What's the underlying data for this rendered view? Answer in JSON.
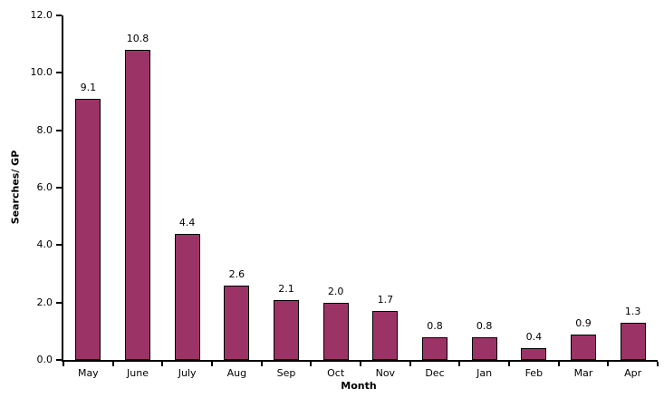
{
  "chart_data": {
    "type": "bar",
    "title": "",
    "xlabel": "Month",
    "ylabel": "Searches/ GP",
    "categories": [
      "May",
      "June",
      "July",
      "Aug",
      "Sep",
      "Oct",
      "Nov",
      "Dec",
      "Jan",
      "Feb",
      "Mar",
      "Apr"
    ],
    "values": [
      9.1,
      10.8,
      4.4,
      2.6,
      2.1,
      2.0,
      1.7,
      0.8,
      0.8,
      0.4,
      0.9,
      1.3
    ],
    "value_labels": [
      "9.1",
      "10.8",
      "4.4",
      "2.6",
      "2.1",
      "2.0",
      "1.7",
      "0.8",
      "0.8",
      "0.4",
      "0.9",
      "1.3"
    ],
    "ylim": [
      0,
      12
    ],
    "ytick_labels": [
      "0.0",
      "2.0",
      "4.0",
      "6.0",
      "8.0",
      "10.0",
      "12.0"
    ],
    "grid": false,
    "legend_position": "none",
    "bar_color": "#9C3366",
    "bar_border_color": "#000000",
    "axis_color": "#000000"
  }
}
